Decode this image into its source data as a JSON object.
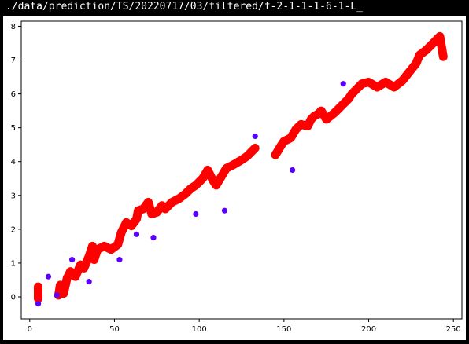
{
  "window": {
    "title": "./data/prediction/TS/20220717/03/filtered/f-2-1-1-1-6-1-L_"
  },
  "chart_data": {
    "type": "scatter",
    "title": "",
    "xlabel": "",
    "ylabel": "",
    "xlim": [
      -5,
      255
    ],
    "ylim": [
      -0.65,
      8.15
    ],
    "xticks": [
      0,
      50,
      100,
      150,
      200,
      250
    ],
    "yticks": [
      0,
      1,
      2,
      3,
      4,
      5,
      6,
      7,
      8
    ],
    "grid": false,
    "legend": "none",
    "series": [
      {
        "color": "#ff0000",
        "style": "dense-band",
        "points": [
          [
            5,
            0.3
          ],
          [
            5,
            0.05
          ],
          [
            5,
            -0.05
          ],
          [
            17,
            0.05
          ],
          [
            18,
            0.35
          ],
          [
            20,
            0.1
          ],
          [
            22,
            0.55
          ],
          [
            24,
            0.75
          ],
          [
            27,
            0.6
          ],
          [
            30,
            0.95
          ],
          [
            32,
            0.85
          ],
          [
            35,
            1.2
          ],
          [
            37,
            1.5
          ],
          [
            38,
            1.1
          ],
          [
            40,
            1.4
          ],
          [
            44,
            1.5
          ],
          [
            48,
            1.4
          ],
          [
            52,
            1.55
          ],
          [
            54,
            1.9
          ],
          [
            57,
            2.2
          ],
          [
            60,
            2.1
          ],
          [
            63,
            2.3
          ],
          [
            64,
            2.55
          ],
          [
            67,
            2.6
          ],
          [
            70,
            2.8
          ],
          [
            72,
            2.45
          ],
          [
            75,
            2.5
          ],
          [
            78,
            2.7
          ],
          [
            80,
            2.6
          ],
          [
            84,
            2.8
          ],
          [
            88,
            2.9
          ],
          [
            92,
            3.05
          ],
          [
            95,
            3.2
          ],
          [
            98,
            3.3
          ],
          [
            102,
            3.5
          ],
          [
            105,
            3.75
          ],
          [
            108,
            3.45
          ],
          [
            110,
            3.3
          ],
          [
            113,
            3.55
          ],
          [
            116,
            3.8
          ],
          [
            120,
            3.9
          ],
          [
            125,
            4.05
          ],
          [
            128,
            4.15
          ],
          [
            130,
            4.25
          ],
          [
            133,
            4.4
          ],
          [
            145,
            4.2
          ],
          [
            148,
            4.45
          ],
          [
            150,
            4.6
          ],
          [
            154,
            4.7
          ],
          [
            157,
            4.95
          ],
          [
            160,
            5.1
          ],
          [
            164,
            5.05
          ],
          [
            166,
            5.25
          ],
          [
            168,
            5.35
          ],
          [
            170,
            5.4
          ],
          [
            172,
            5.5
          ],
          [
            175,
            5.25
          ],
          [
            180,
            5.45
          ],
          [
            185,
            5.7
          ],
          [
            188,
            5.85
          ],
          [
            190,
            6.0
          ],
          [
            193,
            6.15
          ],
          [
            196,
            6.3
          ],
          [
            200,
            6.35
          ],
          [
            205,
            6.2
          ],
          [
            210,
            6.35
          ],
          [
            215,
            6.2
          ],
          [
            220,
            6.4
          ],
          [
            224,
            6.65
          ],
          [
            228,
            6.9
          ],
          [
            230,
            7.15
          ],
          [
            234,
            7.3
          ],
          [
            238,
            7.5
          ],
          [
            242,
            7.7
          ],
          [
            244,
            7.1
          ]
        ]
      },
      {
        "color": "#5a00ff",
        "style": "sparse",
        "points": [
          [
            5,
            -0.2
          ],
          [
            11,
            0.6
          ],
          [
            16,
            0.05
          ],
          [
            25,
            1.1
          ],
          [
            35,
            0.45
          ],
          [
            53,
            1.1
          ],
          [
            63,
            1.85
          ],
          [
            73,
            1.75
          ],
          [
            98,
            2.45
          ],
          [
            115,
            2.55
          ],
          [
            133,
            4.75
          ],
          [
            155,
            3.75
          ],
          [
            185,
            6.3
          ]
        ]
      }
    ]
  }
}
